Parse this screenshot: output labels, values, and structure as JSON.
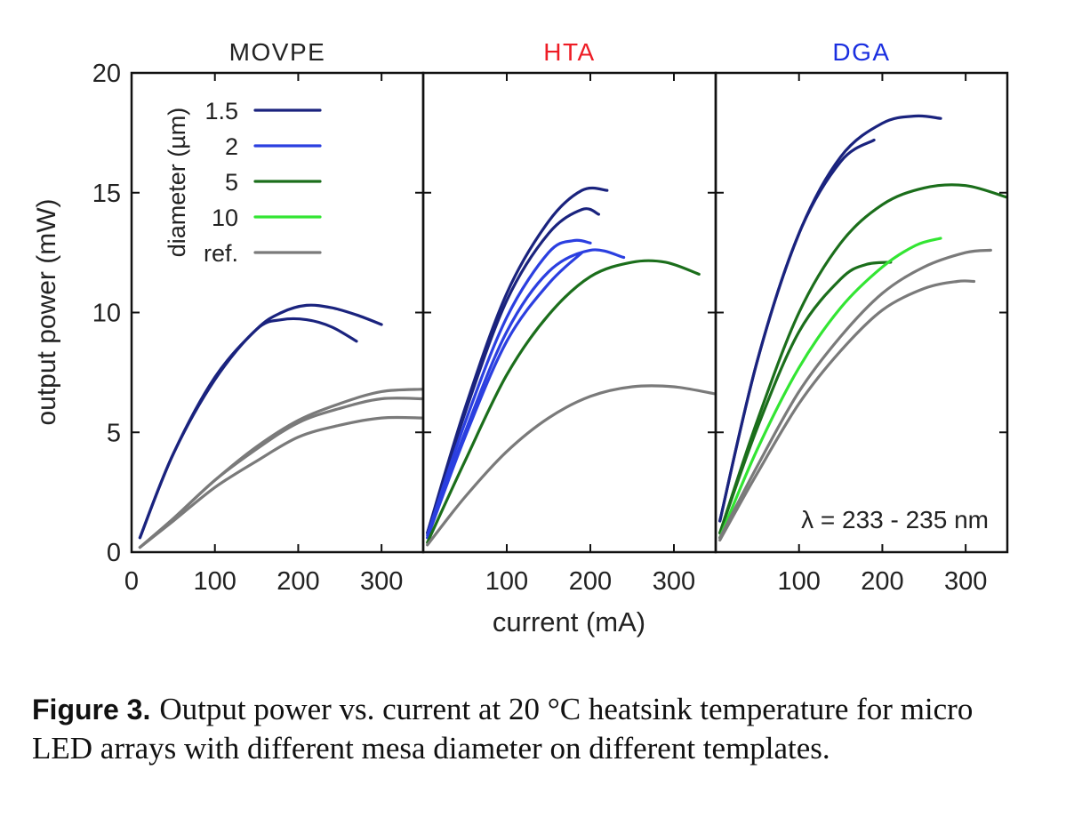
{
  "caption": {
    "label": "Figure 3.",
    "text": "Output power vs. current at 20 °C heatsink temperature for micro LED arrays with different mesa diameter on different templates."
  },
  "colors": {
    "d1_5": "#1a237e",
    "d2": "#2b3fe0",
    "d5": "#1b6e1b",
    "d10": "#33e533",
    "ref": "#7a7a7a",
    "MOVPE": "#222222",
    "HTA": "#ee1c25",
    "DGA": "#1a2fe0"
  },
  "chart_data": {
    "type": "line",
    "ylabel": "output power (mW)",
    "xlabel": "current (mA)",
    "ylim": [
      0,
      20
    ],
    "xlim": [
      0,
      350
    ],
    "yticks": [
      "0",
      "5",
      "10",
      "15",
      "20"
    ],
    "xticks_first": [
      "0",
      "100",
      "200",
      "300"
    ],
    "xticks_other": [
      "100",
      "200",
      "300"
    ],
    "grid": false,
    "legend": {
      "title": "diameter (µm)",
      "position": "top-left of first panel",
      "entries": [
        {
          "label": "1.5",
          "color_key": "d1_5"
        },
        {
          "label": "2",
          "color_key": "d2"
        },
        {
          "label": "5",
          "color_key": "d5"
        },
        {
          "label": "10",
          "color_key": "d10"
        },
        {
          "label": "ref.",
          "color_key": "ref"
        }
      ]
    },
    "annotation": "λ = 233 - 235 nm",
    "panels": [
      {
        "title": "MOVPE",
        "title_color_key": "MOVPE",
        "series": [
          {
            "color_key": "d1_5",
            "x": [
              10,
              50,
              100,
              150,
              180,
              210,
              240,
              270,
              300
            ],
            "y": [
              0.6,
              4.1,
              7.3,
              9.3,
              10.0,
              10.3,
              10.2,
              9.9,
              9.5
            ]
          },
          {
            "color_key": "d1_5",
            "x": [
              10,
              50,
              100,
              150,
              180,
              210,
              240,
              270
            ],
            "y": [
              0.6,
              4.1,
              7.2,
              9.3,
              9.7,
              9.7,
              9.4,
              8.8
            ]
          },
          {
            "color_key": "ref",
            "x": [
              10,
              50,
              100,
              150,
              200,
              250,
              300,
              350
            ],
            "y": [
              0.2,
              1.4,
              3.0,
              4.4,
              5.5,
              6.2,
              6.7,
              6.8
            ]
          },
          {
            "color_key": "ref",
            "x": [
              10,
              50,
              100,
              150,
              200,
              250,
              300,
              350
            ],
            "y": [
              0.2,
              1.4,
              3.0,
              4.3,
              5.4,
              6.0,
              6.4,
              6.4
            ]
          },
          {
            "color_key": "ref",
            "x": [
              10,
              50,
              100,
              150,
              200,
              250,
              300,
              350
            ],
            "y": [
              0.2,
              1.3,
              2.7,
              3.8,
              4.8,
              5.3,
              5.6,
              5.6
            ]
          }
        ]
      },
      {
        "title": "HTA",
        "title_color_key": "HTA",
        "series": [
          {
            "color_key": "d1_5",
            "x": [
              5,
              50,
              100,
              150,
              190,
              220
            ],
            "y": [
              0.8,
              6.0,
              10.8,
              13.8,
              15.1,
              15.1
            ]
          },
          {
            "color_key": "d1_5",
            "x": [
              5,
              50,
              100,
              150,
              190,
              210
            ],
            "y": [
              0.8,
              5.8,
              10.5,
              13.3,
              14.3,
              14.1
            ]
          },
          {
            "color_key": "d2",
            "x": [
              5,
              50,
              100,
              150,
              180,
              200
            ],
            "y": [
              0.7,
              5.4,
              9.8,
              12.5,
              13.0,
              12.9
            ]
          },
          {
            "color_key": "d2",
            "x": [
              5,
              50,
              100,
              150,
              200,
              240
            ],
            "y": [
              0.6,
              5.0,
              9.2,
              11.7,
              12.6,
              12.3
            ]
          },
          {
            "color_key": "d2",
            "x": [
              5,
              50,
              100,
              150,
              190
            ],
            "y": [
              0.6,
              4.8,
              8.8,
              11.2,
              12.5
            ]
          },
          {
            "color_key": "d5",
            "x": [
              5,
              50,
              100,
              150,
              200,
              250,
              290,
              330
            ],
            "y": [
              0.4,
              3.8,
              7.4,
              9.9,
              11.5,
              12.1,
              12.1,
              11.6
            ]
          },
          {
            "color_key": "ref",
            "x": [
              5,
              50,
              100,
              150,
              200,
              250,
              300,
              350
            ],
            "y": [
              0.3,
              2.3,
              4.2,
              5.6,
              6.5,
              6.9,
              6.9,
              6.6
            ]
          }
        ]
      },
      {
        "title": "DGA",
        "title_color_key": "DGA",
        "series": [
          {
            "color_key": "d1_5",
            "x": [
              5,
              50,
              100,
              150,
              200,
              240,
              270
            ],
            "y": [
              1.3,
              8.0,
              13.3,
              16.5,
              17.9,
              18.2,
              18.1
            ]
          },
          {
            "color_key": "d1_5",
            "x": [
              5,
              50,
              100,
              150,
              190
            ],
            "y": [
              1.3,
              8.0,
              13.3,
              16.3,
              17.2
            ]
          },
          {
            "color_key": "d5",
            "x": [
              5,
              50,
              100,
              150,
              200,
              250,
              300,
              350
            ],
            "y": [
              0.8,
              5.5,
              10.0,
              12.9,
              14.5,
              15.2,
              15.3,
              14.8
            ]
          },
          {
            "color_key": "d5",
            "x": [
              5,
              50,
              100,
              150,
              180,
              210
            ],
            "y": [
              0.8,
              5.2,
              9.2,
              11.4,
              12.0,
              12.1
            ]
          },
          {
            "color_key": "d10",
            "x": [
              5,
              50,
              100,
              150,
              200,
              240,
              270
            ],
            "y": [
              0.6,
              4.3,
              7.7,
              10.2,
              11.9,
              12.8,
              13.1
            ]
          },
          {
            "color_key": "ref",
            "x": [
              5,
              50,
              100,
              150,
              200,
              250,
              300,
              330
            ],
            "y": [
              0.6,
              3.6,
              6.7,
              9.0,
              10.8,
              11.9,
              12.5,
              12.6
            ]
          },
          {
            "color_key": "ref",
            "x": [
              5,
              50,
              100,
              150,
              200,
              250,
              290,
              310
            ],
            "y": [
              0.5,
              3.3,
              6.2,
              8.4,
              10.1,
              11.0,
              11.3,
              11.3
            ]
          }
        ]
      }
    ]
  }
}
